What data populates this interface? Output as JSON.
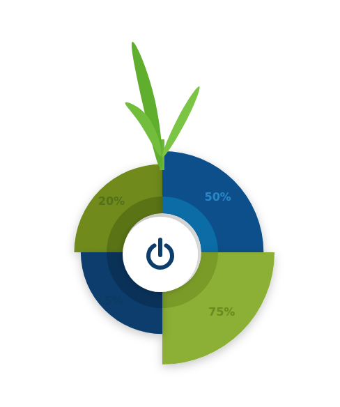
{
  "chart_data": {
    "type": "rose",
    "values": [
      20,
      50,
      75,
      5
    ],
    "value_labels": [
      "20%",
      "50%",
      "75%",
      "5%"
    ],
    "colors": [
      "#6f8b1e",
      "#08508a",
      "#8cb034",
      "#0c3e6c"
    ],
    "ylim": [
      0,
      75
    ],
    "data_labels": true,
    "tick_labels": false
  }
}
